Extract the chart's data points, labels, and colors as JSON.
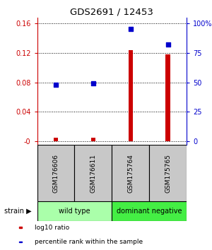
{
  "title": "GDS2691 / 12453",
  "samples": [
    "GSM176606",
    "GSM176611",
    "GSM175764",
    "GSM175765"
  ],
  "log10_ratio": [
    0.005,
    0.005,
    0.124,
    0.118
  ],
  "percentile_rank": [
    48,
    49,
    95,
    82
  ],
  "groups": [
    {
      "label": "wild type",
      "samples": [
        0,
        1
      ]
    },
    {
      "label": "dominant negative",
      "samples": [
        2,
        3
      ]
    }
  ],
  "ylim_left": [
    -0.005,
    0.168
  ],
  "ylim_right": [
    -3.125,
    105
  ],
  "yticks_left": [
    0.0,
    0.04,
    0.08,
    0.12,
    0.16
  ],
  "yticks_right": [
    0,
    25,
    50,
    75,
    100
  ],
  "ytick_labels_left": [
    "-0",
    "0.04",
    "0.08",
    "0.12",
    "0.16"
  ],
  "ytick_labels_right": [
    "0",
    "25",
    "50",
    "75",
    "100%"
  ],
  "left_axis_color": "#cc0000",
  "right_axis_color": "#0000cc",
  "bar_color": "#cc0000",
  "dot_color": "#0000cc",
  "sample_box_color": "#c8c8c8",
  "group_colors": [
    "#aaffaa",
    "#44ee44"
  ],
  "strain_label": "strain",
  "legend_items": [
    {
      "color": "#cc0000",
      "label": "log10 ratio"
    },
    {
      "color": "#0000cc",
      "label": "percentile rank within the sample"
    }
  ],
  "bar_width": 0.12
}
